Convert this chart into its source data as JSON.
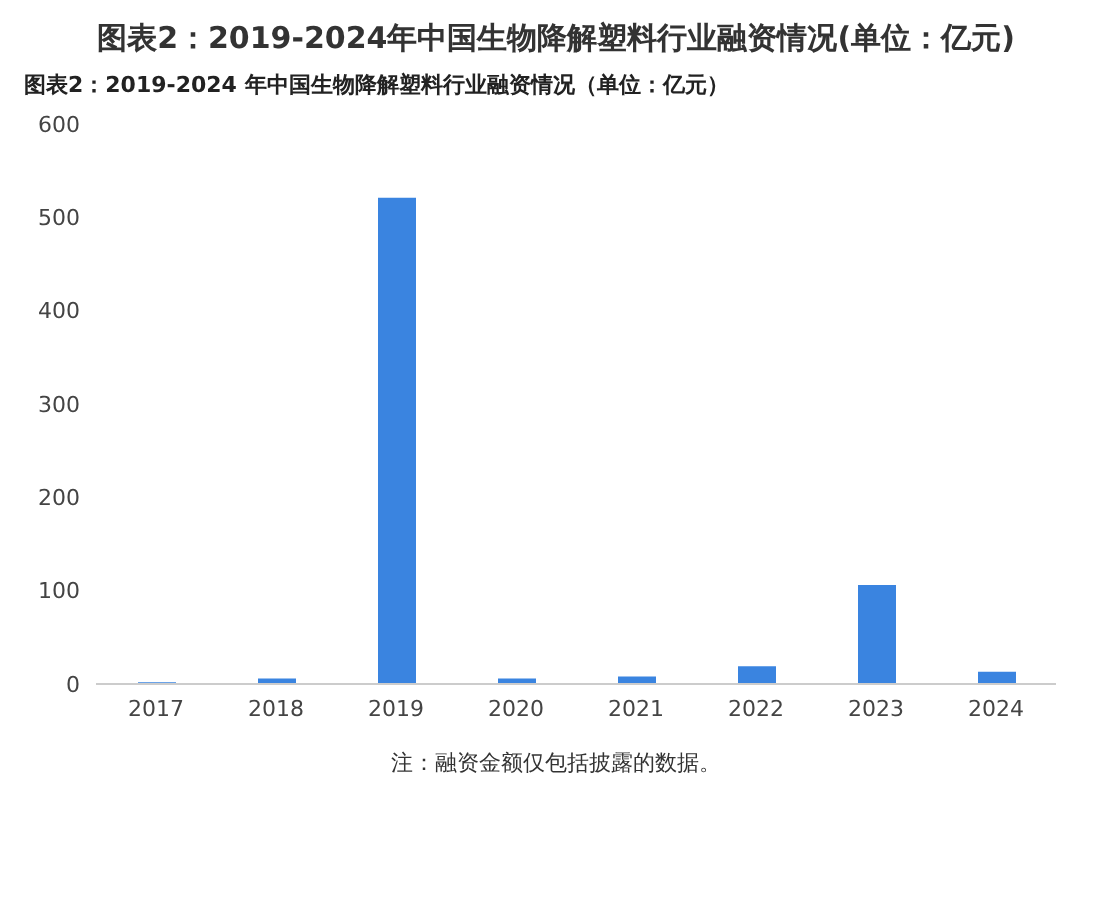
{
  "chart_data": {
    "type": "bar",
    "title": "图表2：2019-2024年中国生物降解塑料行业融资情况(单位：亿元)",
    "subtitle": "图表2：2019-2024 年中国生物降解塑料行业融资情况（单位：亿元）",
    "categories": [
      "2017",
      "2018",
      "2019",
      "2020",
      "2021",
      "2022",
      "2023",
      "2024"
    ],
    "values": [
      2,
      6,
      521,
      6,
      8,
      19,
      106,
      13
    ],
    "color": "#3a84e0",
    "ylim": [
      0,
      600
    ],
    "yticks": [
      0,
      100,
      200,
      300,
      400,
      500,
      600
    ],
    "grid": false,
    "annotations": [
      "注：融资金额仅包括披露的数据。"
    ]
  }
}
